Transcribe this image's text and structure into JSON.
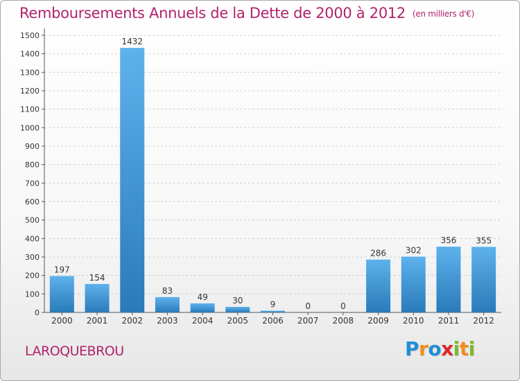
{
  "title": "Remboursements Annuels de la Dette de 2000 à 2012",
  "unit_label": "(en milliers d'€)",
  "commune": "LAROQUEBROU",
  "logo": {
    "letters": [
      {
        "ch": "P",
        "color": "#1f8fd6"
      },
      {
        "ch": "r",
        "color": "#f28c1a"
      },
      {
        "ch": "o",
        "color": "#1f8fd6"
      },
      {
        "ch": "x",
        "color": "#e0262c"
      },
      {
        "ch": "i",
        "color": "#7ab92a"
      },
      {
        "ch": "t",
        "color": "#f28c1a"
      },
      {
        "ch": "i",
        "color": "#7ab92a"
      }
    ]
  },
  "colors": {
    "title": "#b0226b",
    "bar_light": "#5eb2ec",
    "bar_dark": "#2a7ab9",
    "grid": "#cfcfcf"
  },
  "chart_data": {
    "type": "bar",
    "categories": [
      "2000",
      "2001",
      "2002",
      "2003",
      "2004",
      "2005",
      "2006",
      "2007",
      "2008",
      "2009",
      "2010",
      "2011",
      "2012"
    ],
    "values": [
      197,
      154,
      1432,
      83,
      49,
      30,
      9,
      0,
      0,
      286,
      302,
      356,
      355
    ],
    "data_labels": [
      "197",
      "154",
      "1432",
      "83",
      "49",
      "30",
      "9",
      "0",
      "0",
      "286",
      "302",
      "356",
      "355"
    ],
    "ylim": [
      0,
      1500
    ],
    "yticks": [
      0,
      100,
      200,
      300,
      400,
      500,
      600,
      700,
      800,
      900,
      1000,
      1100,
      1200,
      1300,
      1400,
      1500
    ],
    "grid": true
  }
}
